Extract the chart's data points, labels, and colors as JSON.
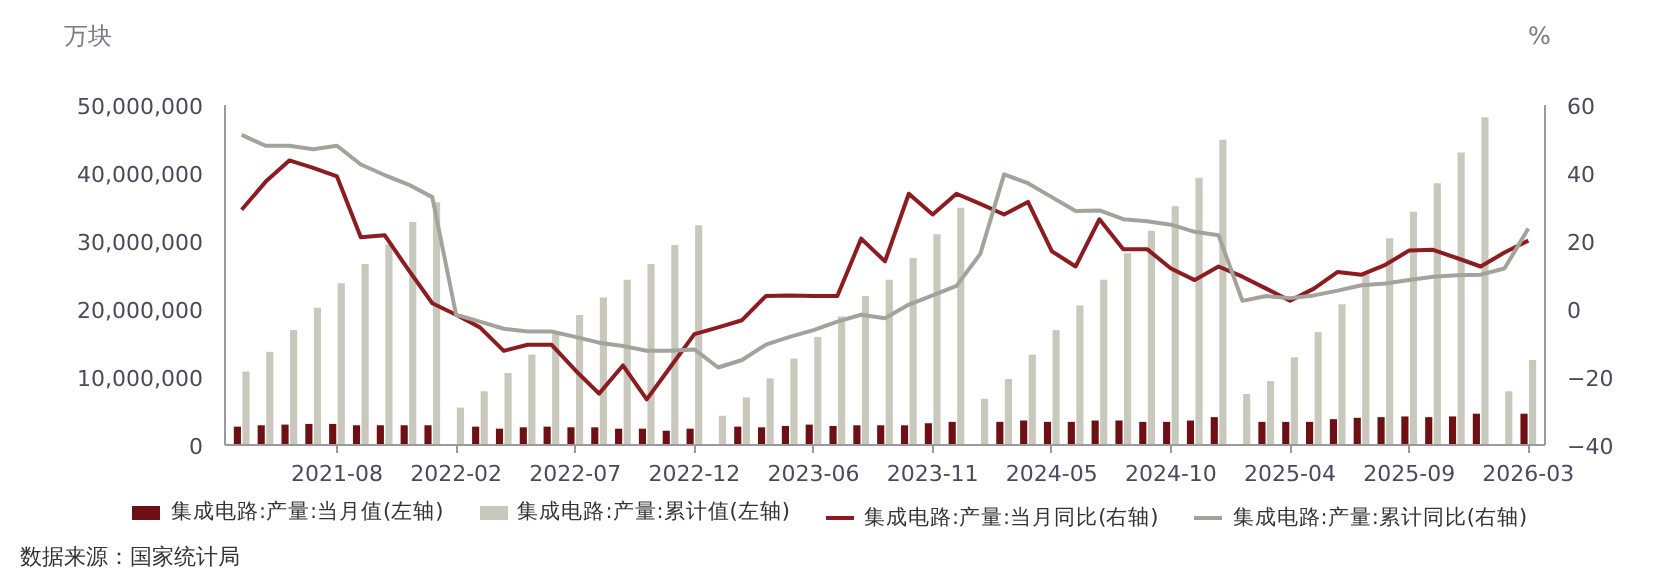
{
  "chart_data": {
    "type": "bar",
    "ylabel": "万块",
    "y2label": "%",
    "categories": [
      null,
      null,
      null,
      null,
      "2021-08",
      null,
      null,
      null,
      null,
      "2022-02",
      null,
      null,
      null,
      null,
      "2022-07",
      null,
      null,
      null,
      null,
      "2022-12",
      null,
      null,
      null,
      null,
      "2023-06",
      null,
      null,
      null,
      null,
      "2023-11",
      null,
      null,
      null,
      null,
      "2024-05",
      null,
      null,
      null,
      null,
      "2024-10",
      null,
      null,
      null,
      null,
      "2025-04",
      null,
      null,
      null,
      null,
      "2025-09",
      null,
      null,
      null,
      null,
      "2026-03"
    ],
    "series": [
      {
        "name": "集成电路:产量:当月值(左轴)",
        "color": "#6e1013",
        "values": [
          2700000,
          2900000,
          3000000,
          3100000,
          3100000,
          2900000,
          2900000,
          2900000,
          2900000,
          null,
          2700000,
          2400000,
          2600000,
          2700000,
          2600000,
          2600000,
          2400000,
          2400000,
          2100000,
          2400000,
          null,
          2700000,
          2600000,
          2800000,
          3000000,
          2800000,
          2900000,
          2900000,
          2900000,
          3200000,
          3400000,
          null,
          3400000,
          3600000,
          3400000,
          3400000,
          3600000,
          3600000,
          3400000,
          3400000,
          3600000,
          4100000,
          null,
          3400000,
          3400000,
          3400000,
          3800000,
          4000000,
          4100000,
          4200000,
          4100000,
          4200000,
          4600000,
          null,
          4600000
        ]
      },
      {
        "name": "集成电路:产量:累计值(左轴)",
        "color": "#c9c8bd",
        "values": [
          10800000,
          13700000,
          16900000,
          20200000,
          23800000,
          26600000,
          29500000,
          32800000,
          35700000,
          5500000,
          7900000,
          10600000,
          13300000,
          16300000,
          19100000,
          21700000,
          24300000,
          26600000,
          29400000,
          32300000,
          4300000,
          7000000,
          9800000,
          12700000,
          15900000,
          18900000,
          21900000,
          24300000,
          27500000,
          31000000,
          34900000,
          6800000,
          9700000,
          13300000,
          16900000,
          20500000,
          24300000,
          28200000,
          31500000,
          35100000,
          39300000,
          44900000,
          7500000,
          9400000,
          12900000,
          16600000,
          20700000,
          25100000,
          30400000,
          34300000,
          38500000,
          43000000,
          48200000,
          7900000,
          12500000
        ]
      },
      {
        "name": "集成电路:产量:当月同比(右轴)",
        "type": "line",
        "axis": "y2",
        "color": "#8c1c1f",
        "values": [
          29.2,
          37.4,
          43.7,
          41.5,
          39.0,
          21.1,
          21.7,
          11.5,
          1.7,
          -1.7,
          -5.4,
          -12.3,
          -10.5,
          -10.5,
          -18.0,
          -24.9,
          -16.6,
          -26.6,
          -17.0,
          -7.4,
          -5.4,
          -3.3,
          3.8,
          4.0,
          3.8,
          3.8,
          20.7,
          14.0,
          33.9,
          27.8,
          33.9,
          30.9,
          27.8,
          31.5,
          17.0,
          12.5,
          26.4,
          17.6,
          17.6,
          11.9,
          8.5,
          12.5,
          9.5,
          6.0,
          2.4,
          6.0,
          10.9,
          10.1,
          13.0,
          17.2,
          17.4,
          15.0,
          12.5,
          16.6,
          20.1
        ]
      },
      {
        "name": "集成电路:产量:累计同比(右轴)",
        "type": "line",
        "axis": "y2",
        "color": "#a3a39b",
        "values": [
          51.2,
          48.0,
          48.0,
          47.0,
          48.0,
          42.5,
          39.4,
          36.6,
          32.9,
          -1.7,
          -3.7,
          -5.8,
          -6.6,
          -6.6,
          -8.2,
          -9.9,
          -10.9,
          -12.3,
          -12.3,
          -11.9,
          -17.2,
          -15.0,
          -10.5,
          -8.2,
          -6.2,
          -3.7,
          -1.7,
          -2.7,
          1.3,
          4.0,
          6.8,
          16.2,
          39.6,
          37.0,
          32.9,
          28.8,
          29.0,
          26.4,
          25.8,
          24.8,
          22.7,
          21.7,
          2.4,
          3.8,
          3.2,
          4.0,
          5.4,
          7.0,
          7.5,
          8.5,
          9.5,
          9.9,
          10.1,
          11.9,
          23.7
        ]
      }
    ],
    "ylim": [
      0,
      50000000
    ],
    "yticks": [
      0,
      {
        "value": 10000000,
        "label": "10,000,000"
      },
      {
        "value": 20000000,
        "label": "20,000,000"
      },
      {
        "value": 30000000,
        "label": "30,000,000"
      },
      {
        "value": 40000000,
        "label": "40,000,000"
      },
      {
        "value": 50000000,
        "label": "50,000,000"
      }
    ],
    "y2lim": [
      -40,
      60
    ],
    "y2ticks": [
      -40,
      -20,
      0,
      20,
      40,
      60
    ],
    "grid": false,
    "legend": "bottom",
    "annotations": [
      "数据来源：国家统计局"
    ]
  }
}
